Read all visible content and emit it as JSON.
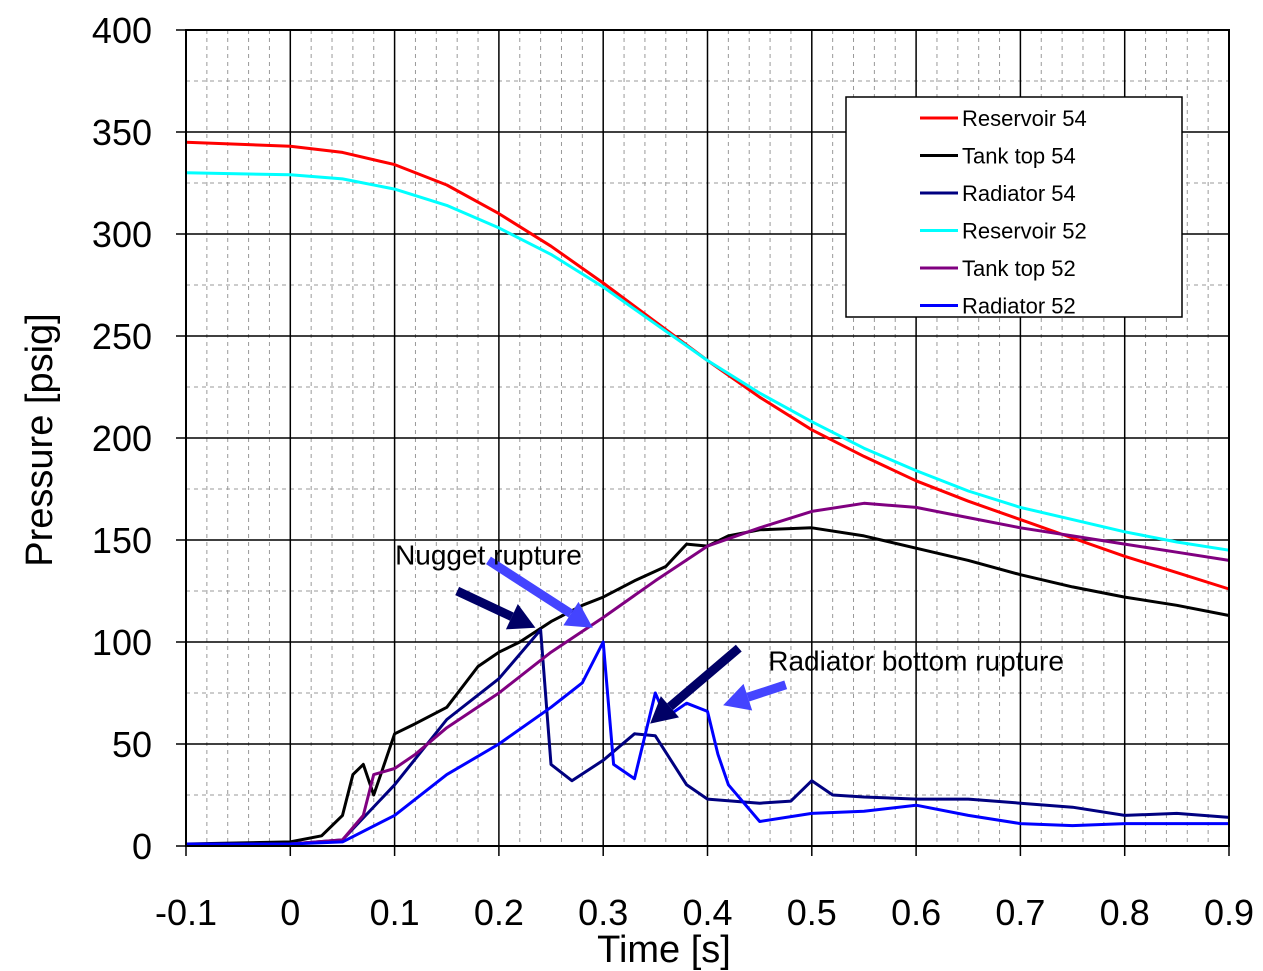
{
  "chart_data": {
    "type": "line",
    "title": "",
    "xlabel": "Time [s]",
    "ylabel": "Pressure [psig]",
    "xlim": [
      -0.1,
      0.9
    ],
    "ylim": [
      0,
      400
    ],
    "xticks": [
      -0.1,
      0,
      0.1,
      0.2,
      0.3,
      0.4,
      0.5,
      0.6,
      0.7,
      0.8,
      0.9
    ],
    "xtick_labels": [
      "-0.1",
      "0",
      "0.1",
      "0.2",
      "0.3",
      "0.4",
      "0.5",
      "0.6",
      "0.7",
      "0.8",
      "0.9"
    ],
    "yticks": [
      0,
      50,
      100,
      150,
      200,
      250,
      300,
      350,
      400
    ],
    "ytick_labels": [
      "0",
      "50",
      "100",
      "150",
      "200",
      "250",
      "300",
      "350",
      "400"
    ],
    "grid": true,
    "legend_position": "top-right",
    "series": [
      {
        "name": "Reservoir 54",
        "color": "#ff0000",
        "x": [
          -0.1,
          0,
          0.05,
          0.1,
          0.15,
          0.2,
          0.25,
          0.3,
          0.35,
          0.4,
          0.45,
          0.5,
          0.55,
          0.6,
          0.65,
          0.7,
          0.75,
          0.8,
          0.85,
          0.9
        ],
        "y": [
          345,
          343,
          340,
          334,
          324,
          310,
          294,
          276,
          257,
          238,
          220,
          204,
          191,
          179,
          169,
          160,
          151,
          142,
          134,
          126
        ]
      },
      {
        "name": "Tank top 54",
        "color": "#000000",
        "x": [
          -0.1,
          0,
          0.03,
          0.05,
          0.06,
          0.07,
          0.08,
          0.09,
          0.1,
          0.12,
          0.15,
          0.18,
          0.2,
          0.22,
          0.25,
          0.28,
          0.3,
          0.33,
          0.36,
          0.38,
          0.4,
          0.42,
          0.45,
          0.5,
          0.55,
          0.6,
          0.65,
          0.7,
          0.75,
          0.8,
          0.85,
          0.9
        ],
        "y": [
          1,
          2,
          5,
          15,
          35,
          40,
          25,
          40,
          55,
          60,
          68,
          88,
          95,
          100,
          110,
          118,
          122,
          130,
          137,
          148,
          147,
          152,
          155,
          156,
          152,
          146,
          140,
          133,
          127,
          122,
          118,
          113
        ]
      },
      {
        "name": "Radiator 54",
        "color": "#000080",
        "x": [
          -0.1,
          0,
          0.05,
          0.1,
          0.15,
          0.2,
          0.24,
          0.25,
          0.27,
          0.3,
          0.33,
          0.35,
          0.38,
          0.4,
          0.45,
          0.48,
          0.5,
          0.52,
          0.55,
          0.6,
          0.65,
          0.7,
          0.75,
          0.8,
          0.85,
          0.9
        ],
        "y": [
          1,
          1,
          3,
          30,
          62,
          82,
          106,
          40,
          32,
          42,
          55,
          54,
          30,
          23,
          21,
          22,
          32,
          25,
          24,
          23,
          23,
          21,
          19,
          15,
          16,
          14
        ]
      },
      {
        "name": "Reservoir 52",
        "color": "#00ffff",
        "x": [
          -0.1,
          0,
          0.05,
          0.1,
          0.15,
          0.2,
          0.25,
          0.3,
          0.35,
          0.4,
          0.45,
          0.5,
          0.55,
          0.6,
          0.65,
          0.7,
          0.75,
          0.8,
          0.85,
          0.9
        ],
        "y": [
          330,
          329,
          327,
          322,
          314,
          303,
          290,
          274,
          256,
          238,
          222,
          208,
          195,
          184,
          174,
          166,
          160,
          154,
          149,
          145
        ]
      },
      {
        "name": "Tank top 52",
        "color": "#800080",
        "x": [
          -0.1,
          0,
          0.05,
          0.07,
          0.08,
          0.1,
          0.12,
          0.15,
          0.2,
          0.25,
          0.3,
          0.35,
          0.4,
          0.45,
          0.5,
          0.55,
          0.6,
          0.65,
          0.7,
          0.75,
          0.8,
          0.85,
          0.9
        ],
        "y": [
          1,
          1,
          3,
          15,
          35,
          38,
          45,
          58,
          75,
          95,
          112,
          130,
          147,
          156,
          164,
          168,
          166,
          161,
          156,
          152,
          148,
          144,
          140
        ]
      },
      {
        "name": "Radiator 52",
        "color": "#0000ff",
        "x": [
          -0.1,
          0,
          0.05,
          0.1,
          0.15,
          0.2,
          0.25,
          0.28,
          0.3,
          0.31,
          0.33,
          0.35,
          0.36,
          0.38,
          0.4,
          0.41,
          0.42,
          0.45,
          0.5,
          0.55,
          0.6,
          0.65,
          0.7,
          0.75,
          0.8,
          0.85,
          0.9
        ],
        "y": [
          1,
          1,
          2,
          15,
          35,
          50,
          68,
          80,
          100,
          40,
          33,
          75,
          63,
          70,
          66,
          45,
          30,
          12,
          16,
          17,
          20,
          15,
          11,
          10,
          11,
          11,
          11
        ]
      }
    ],
    "annotations": [
      {
        "text": "Nugget rupture",
        "x": 0.19,
        "y": 138
      },
      {
        "text": "Radiator bottom rupture",
        "x": 0.6,
        "y": 86
      }
    ],
    "arrows": [
      {
        "color": "#000066",
        "x1": 0.16,
        "y1": 125,
        "x2": 0.235,
        "y2": 107
      },
      {
        "color": "#4444ff",
        "x1": 0.19,
        "y1": 140,
        "x2": 0.29,
        "y2": 107
      },
      {
        "color": "#000066",
        "x1": 0.43,
        "y1": 97,
        "x2": 0.345,
        "y2": 60
      },
      {
        "color": "#4444ff",
        "x1": 0.475,
        "y1": 79,
        "x2": 0.415,
        "y2": 69
      }
    ]
  }
}
